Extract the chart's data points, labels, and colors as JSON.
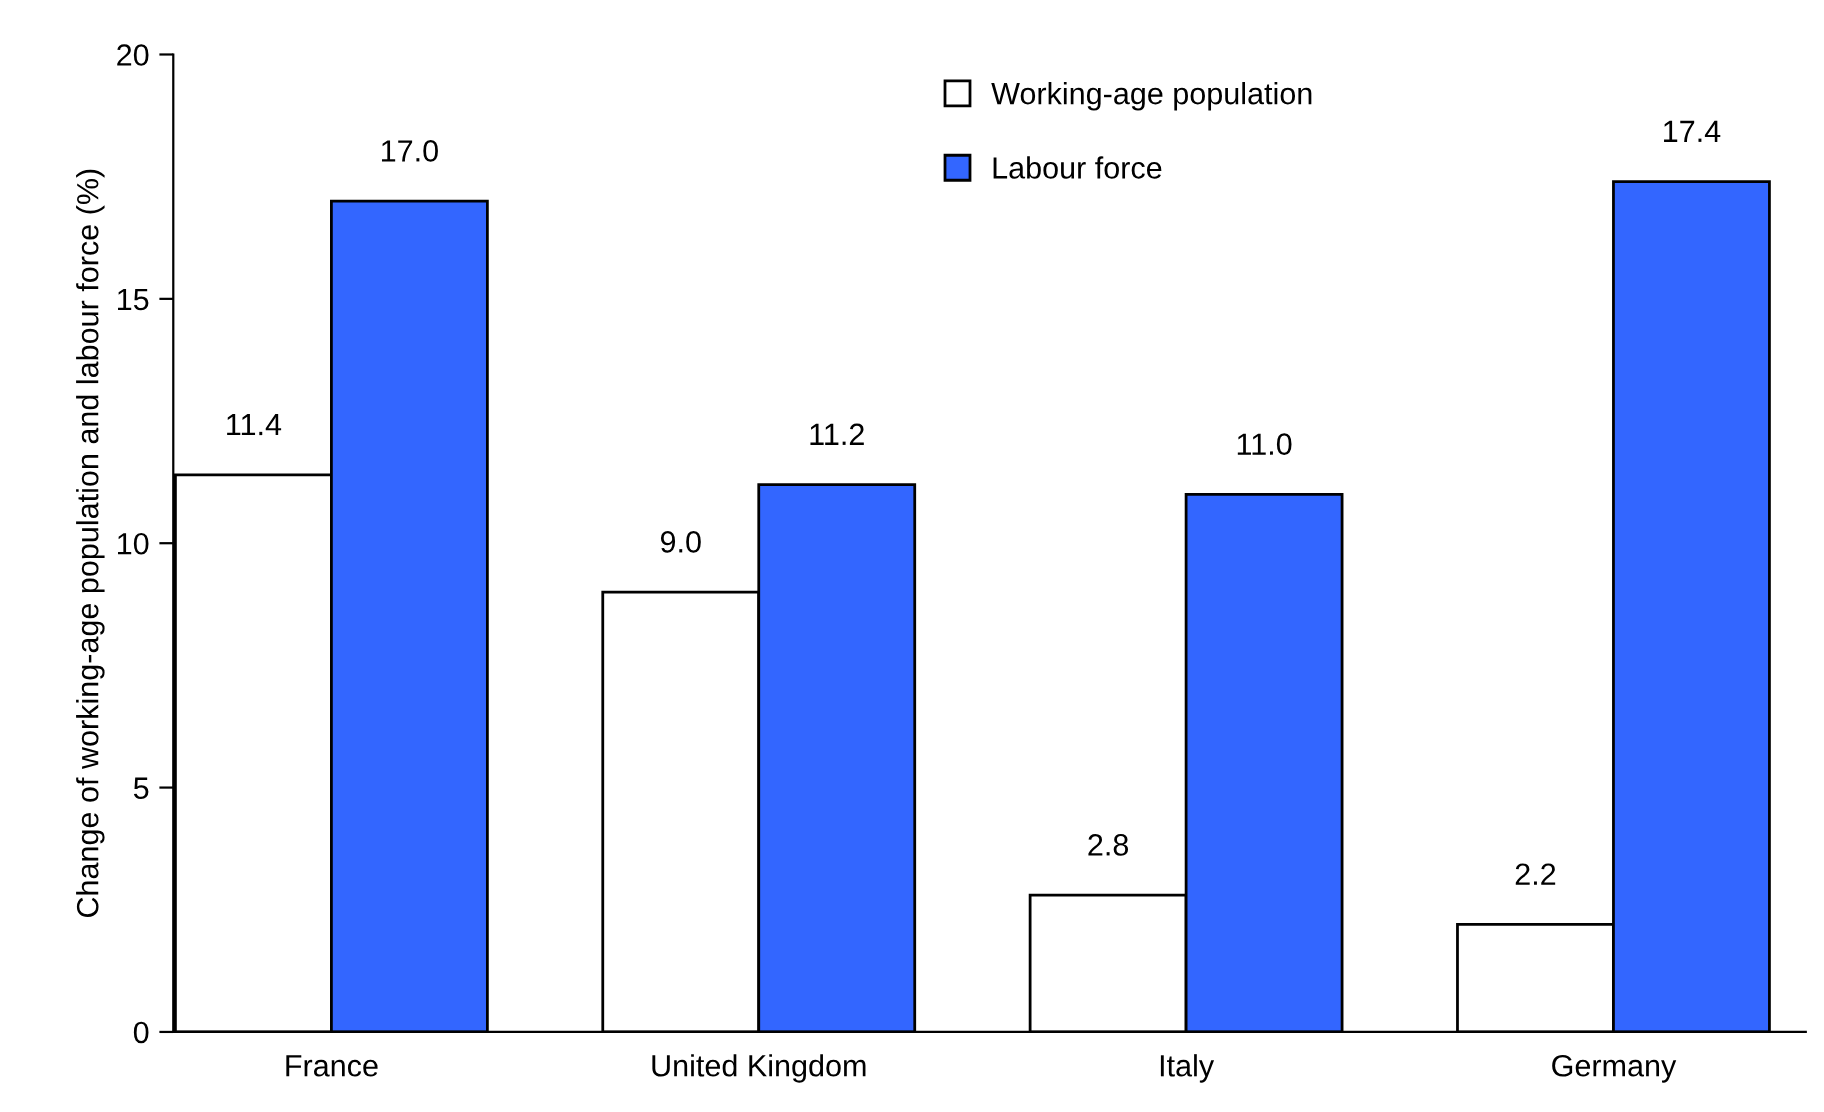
{
  "chart_data": {
    "type": "bar",
    "ylabel": "Change of working-age population and labour force (%)",
    "categories": [
      "France",
      "United Kingdom",
      "Italy",
      "Germany"
    ],
    "series": [
      {
        "name": "Working-age population",
        "color": "#ffffff",
        "values": [
          11.4,
          9.0,
          2.8,
          2.2
        ],
        "value_labels": [
          "11.4",
          "9.0",
          "2.8",
          "2.2"
        ]
      },
      {
        "name": "Labour force",
        "color": "#3366ff",
        "values": [
          17.0,
          11.2,
          11.0,
          17.4
        ],
        "value_labels": [
          "17.0",
          "11.2",
          "11.0",
          "17.4"
        ]
      }
    ],
    "ylim": [
      0,
      20
    ],
    "yticks": [
      0,
      5,
      10,
      15,
      20
    ],
    "grid": false,
    "legend": "top"
  }
}
